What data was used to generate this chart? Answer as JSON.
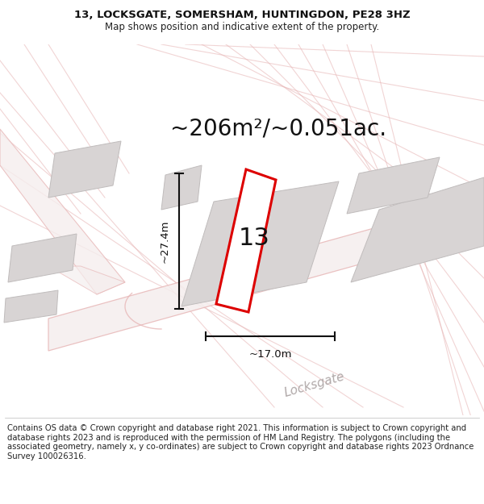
{
  "title_line1": "13, LOCKSGATE, SOMERSHAM, HUNTINGDON, PE28 3HZ",
  "title_line2": "Map shows position and indicative extent of the property.",
  "area_text": "~206m²/~0.051ac.",
  "plot_number": "13",
  "dim_vertical": "~27.4m",
  "dim_horizontal": "~17.0m",
  "street_label": "Locksgate",
  "copyright_text": "Contains OS data © Crown copyright and database right 2021. This information is subject to Crown copyright and database rights 2023 and is reproduced with the permission of HM Land Registry. The polygons (including the associated geometry, namely x, y co-ordinates) are subject to Crown copyright and database rights 2023 Ordnance Survey 100026316.",
  "bg_color": "#ffffff",
  "map_bg": "#faf7f7",
  "road_color": "#e8b8b8",
  "road_fill": "#f5eeee",
  "building_color": "#d8d4d4",
  "building_edge": "#c0bcbc",
  "property_color": "#dd0000",
  "dim_color": "#111111",
  "title_fontsize": 9.5,
  "subtitle_fontsize": 8.5,
  "area_fontsize": 20,
  "plot_num_fontsize": 22,
  "copyright_fontsize": 7.2,
  "street_fontsize": 11
}
